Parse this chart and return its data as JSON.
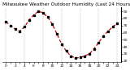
{
  "title": "Milwaukee Weather Outdoor Humidity (Last 24 Hours)",
  "background_color": "#ffffff",
  "line_color": "#cc0000",
  "marker_color": "#000000",
  "grid_color": "#999999",
  "values": [
    75,
    70,
    65,
    62,
    68,
    78,
    85,
    90,
    88,
    82,
    72,
    58,
    44,
    34,
    27,
    24,
    25,
    27,
    30,
    37,
    46,
    55,
    62,
    68,
    73
  ],
  "ylim": [
    18,
    96
  ],
  "ytick_values": [
    20,
    30,
    40,
    50,
    60,
    70,
    80,
    90
  ],
  "ytick_labels": [
    "20",
    "30",
    "40",
    "50",
    "60",
    "70",
    "80",
    "90"
  ],
  "title_fontsize": 4.2,
  "tick_fontsize": 3.2,
  "line_width": 0.9,
  "marker_size": 1.5,
  "vgrid_interval": 4,
  "n_points": 25
}
